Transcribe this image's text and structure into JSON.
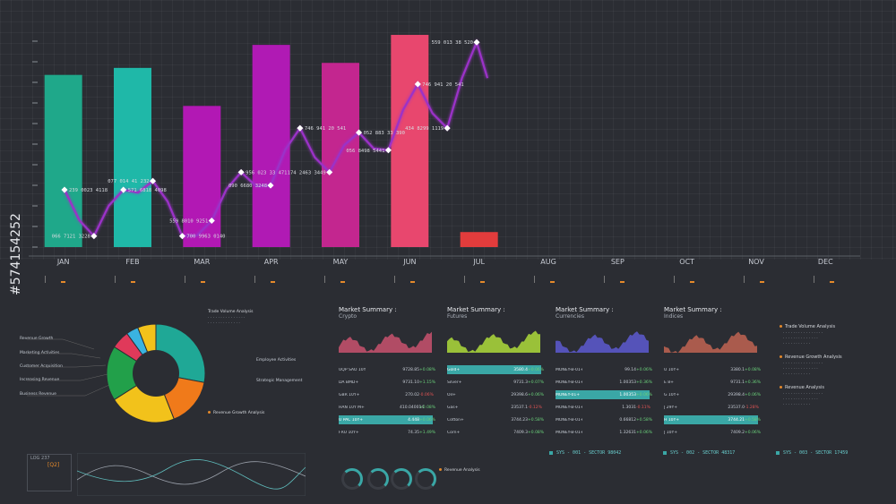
{
  "chart_data": {
    "type": "bar",
    "categories": [
      "JAN",
      "FEB",
      "MAR",
      "APR",
      "MAY",
      "JUN",
      "JUL",
      "AUG",
      "SEP",
      "OCT",
      "NOV",
      "DEC"
    ],
    "values": [
      172,
      179,
      141,
      202,
      184,
      212,
      15,
      null,
      null,
      null,
      null,
      null
    ],
    "bar_colors": [
      "#1fa88a",
      "#1fb8a8",
      "#b218b4",
      "#b01ab4",
      "#c3268f",
      "#e8476e",
      "#e23c3c",
      null,
      null,
      null,
      null,
      null
    ],
    "line": {
      "color": "#9b32c8",
      "labels": [
        "239 0023 4118",
        "066 7121 3228",
        "571 6818 4098",
        "077 014 41 232",
        "700 9963 0140",
        "559 8010 9251",
        "956 023 33 471",
        "090 6680 3248",
        "746 941 20 541",
        "174 2463 3449",
        "052 883 33 390",
        "056 8498 5441",
        "746 941 20 541",
        "434 8299 1119",
        "559 013 38 520"
      ]
    }
  },
  "months": [
    "JAN",
    "FEB",
    "MAR",
    "APR",
    "MAY",
    "JUN",
    "JUL",
    "AUG",
    "SEP",
    "OCT",
    "NOV",
    "DEC"
  ],
  "pie": {
    "title": "Trade Volume Analysis",
    "labels_left": [
      "Revenue Growth",
      "Marketing Activities",
      "Customer Acquisition",
      "Increasing Revenue",
      "Business Revenue"
    ],
    "labels_right": [
      "Employee Activities",
      "Strategic Management"
    ],
    "bottom_title": "Revenue Growth Analysis",
    "slices": [
      {
        "value": 28,
        "color": "#1fa896"
      },
      {
        "value": 16,
        "color": "#f07a1a"
      },
      {
        "value": 22,
        "color": "#f2c21b"
      },
      {
        "value": 18,
        "color": "#22a04a"
      },
      {
        "value": 6,
        "color": "#e0395a"
      },
      {
        "value": 4,
        "color": "#3ab3e0"
      },
      {
        "value": 6,
        "color": "#f2c21b"
      }
    ]
  },
  "summaries": [
    {
      "title": "Market Summary :",
      "subtitle": "Crypto",
      "color": "#c0506a",
      "rows": [
        {
          "name": "UQP SAO 10Y+",
          "value": "9728.85",
          "change": "+0.08%",
          "hl": false,
          "neg": false
        },
        {
          "name": "DA BMD+",
          "value": "9731.10",
          "change": "+1.15%",
          "hl": false,
          "neg": false
        },
        {
          "name": "GBR 10Y+",
          "value": "270.02",
          "change": "-0.06%",
          "hl": false,
          "neg": true
        },
        {
          "name": "HAN 10Y M+",
          "value": "410.040014",
          "change": "+0.08%",
          "hl": false,
          "neg": false
        },
        {
          "name": "U PAC 10Y+",
          "value": "4.448",
          "change": "+0.06%",
          "hl": true,
          "neg": false
        },
        {
          "name": "FRU 10Y+",
          "value": "74.35",
          "change": "+1.49%",
          "hl": false,
          "neg": false
        }
      ]
    },
    {
      "title": "Market Summary :",
      "subtitle": "Futures",
      "color": "#a6d23a",
      "rows": [
        {
          "name": "Gold+",
          "value": "3580.4",
          "change": "+0.06%",
          "hl": true,
          "neg": false
        },
        {
          "name": "Silver+",
          "value": "9731.3",
          "change": "+0.07%",
          "hl": false,
          "neg": false
        },
        {
          "name": "Oil+",
          "value": "29398.6",
          "change": "+0.06%",
          "hl": false,
          "neg": false
        },
        {
          "name": "Gas+",
          "value": "23537.1",
          "change": "-0.12%",
          "hl": false,
          "neg": true
        },
        {
          "name": "Cotton+",
          "value": "3744.23",
          "change": "+0.58%",
          "hl": false,
          "neg": false
        },
        {
          "name": "Corn+",
          "value": "7409.3",
          "change": "+0.08%",
          "hl": false,
          "neg": false
        }
      ]
    },
    {
      "title": "Market Summary :",
      "subtitle": "Currencies",
      "color": "#5a58c8",
      "rows": [
        {
          "name": "MONEY-B-01+",
          "value": "99.14",
          "change": "+0.06%",
          "hl": false,
          "neg": false
        },
        {
          "name": "MONEY-B-01+",
          "value": "1.00353",
          "change": "+0.36%",
          "hl": false,
          "neg": false
        },
        {
          "name": "MONEY-01+",
          "value": "1.00353",
          "change": "+0.06%",
          "hl": true,
          "neg": false
        },
        {
          "name": "MONEY-B-01+",
          "value": "1.3031",
          "change": "-0.11%",
          "hl": false,
          "neg": true
        },
        {
          "name": "MONEY-B-01+",
          "value": "0.66812",
          "change": "+0.58%",
          "hl": false,
          "neg": false
        },
        {
          "name": "MONEY-B-01+",
          "value": "1.32631",
          "change": "+0.06%",
          "hl": false,
          "neg": false
        }
      ]
    },
    {
      "title": "Market Summary :",
      "subtitle": "Indices",
      "color": "#b86050",
      "rows": [
        {
          "name": "U 10Y+",
          "value": "3380.1",
          "change": "+0.08%",
          "hl": false,
          "neg": false
        },
        {
          "name": "E 8+",
          "value": "9731.1",
          "change": "+0.36%",
          "hl": false,
          "neg": false
        },
        {
          "name": "G 10Y+",
          "value": "29398.4",
          "change": "+0.06%",
          "hl": false,
          "neg": false
        },
        {
          "name": "J 29Y+",
          "value": "23537.0",
          "change": "-1.28%",
          "hl": false,
          "neg": true
        },
        {
          "name": "H 10Y+",
          "value": "3744.21",
          "change": "+0.58%",
          "hl": true,
          "neg": false
        },
        {
          "name": "J 10Y+",
          "value": "7409.2",
          "change": "+0.06%",
          "hl": false,
          "neg": false
        }
      ]
    }
  ],
  "right_panel": {
    "sections": [
      "Trade Volume Analysis",
      "Revenue Growth Analysis",
      "Revenue Analysis"
    ]
  },
  "bottom": {
    "log_label": "LOG 237",
    "q_label": "[Q2]",
    "revenue_title": "Revenue Analysis",
    "sectors": [
      "SYS - 001 - SECTOR 98042",
      "SYS - 002 - SECTOR 48317",
      "SYS - 003 - SECTOR 17459"
    ]
  },
  "watermark": "#574154252"
}
